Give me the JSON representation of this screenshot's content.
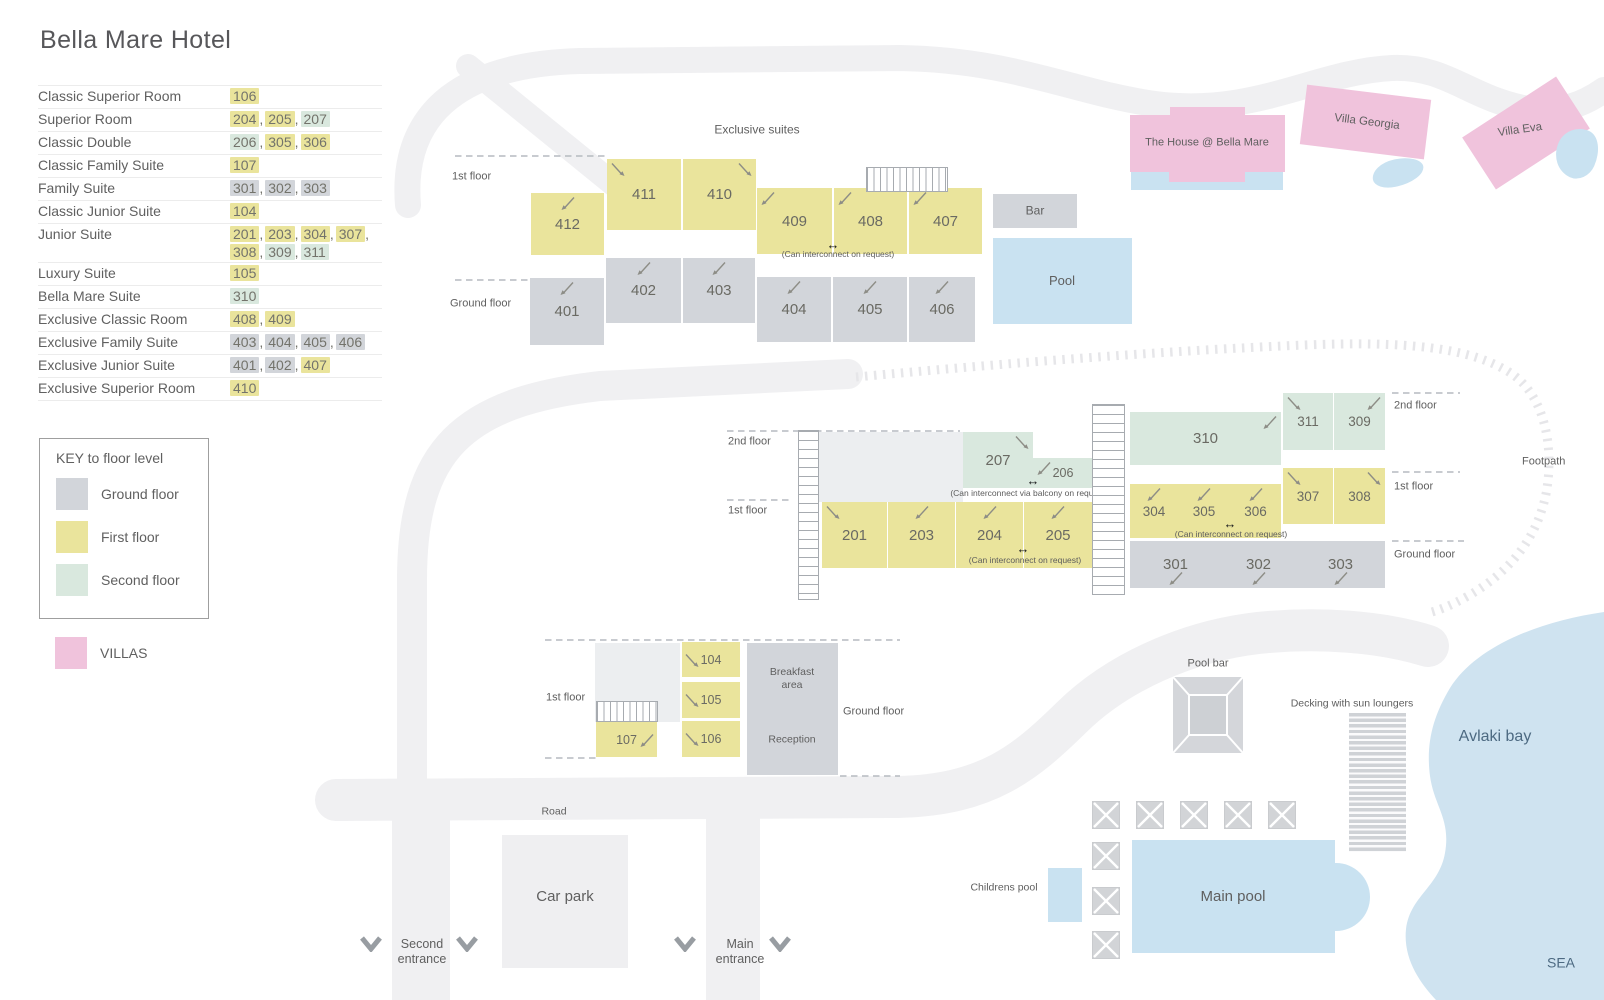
{
  "title": "Bella Mare Hotel",
  "colors": {
    "first": "#eae49c",
    "ground": "#d2d5da",
    "second": "#d9e8de",
    "villas": "#f0c3dc",
    "water": "#c9e2f1",
    "bay": "#cfe3f0",
    "road": "#f0f0f2"
  },
  "legend": {
    "rows": [
      {
        "label": "Classic Superior Room",
        "rooms": [
          {
            "n": "106",
            "f": "first"
          }
        ]
      },
      {
        "label": "Superior Room",
        "rooms": [
          {
            "n": "204",
            "f": "first"
          },
          {
            "n": "205",
            "f": "first"
          },
          {
            "n": "207",
            "f": "second"
          }
        ]
      },
      {
        "label": "Classic Double",
        "rooms": [
          {
            "n": "206",
            "f": "second"
          },
          {
            "n": "305",
            "f": "first"
          },
          {
            "n": "306",
            "f": "first"
          }
        ]
      },
      {
        "label": "Classic Family Suite",
        "rooms": [
          {
            "n": "107",
            "f": "first"
          }
        ]
      },
      {
        "label": "Family Suite",
        "rooms": [
          {
            "n": "301",
            "f": "ground"
          },
          {
            "n": "302",
            "f": "ground"
          },
          {
            "n": "303",
            "f": "ground"
          }
        ]
      },
      {
        "label": "Classic Junior Suite",
        "rooms": [
          {
            "n": "104",
            "f": "first"
          }
        ]
      },
      {
        "label": "Junior Suite",
        "rooms": [
          {
            "n": "201",
            "f": "first"
          },
          {
            "n": "203",
            "f": "first"
          },
          {
            "n": "304",
            "f": "first"
          },
          {
            "n": "307",
            "f": "first"
          },
          {
            "n": "308",
            "f": "first"
          },
          {
            "n": "309",
            "f": "second"
          },
          {
            "n": "311",
            "f": "second"
          }
        ]
      },
      {
        "label": "Luxury Suite",
        "rooms": [
          {
            "n": "105",
            "f": "first"
          }
        ]
      },
      {
        "label": "Bella Mare Suite",
        "rooms": [
          {
            "n": "310",
            "f": "second"
          }
        ]
      },
      {
        "label": "Exclusive Classic Room",
        "rooms": [
          {
            "n": "408",
            "f": "first"
          },
          {
            "n": "409",
            "f": "first"
          }
        ]
      },
      {
        "label": "Exclusive Family Suite",
        "rooms": [
          {
            "n": "403",
            "f": "ground"
          },
          {
            "n": "404",
            "f": "ground"
          },
          {
            "n": "405",
            "f": "ground"
          },
          {
            "n": "406",
            "f": "ground"
          }
        ]
      },
      {
        "label": "Exclusive Junior Suite",
        "rooms": [
          {
            "n": "401",
            "f": "ground"
          },
          {
            "n": "402",
            "f": "ground"
          },
          {
            "n": "407",
            "f": "first"
          }
        ]
      },
      {
        "label": "Exclusive Superior Room",
        "rooms": [
          {
            "n": "410",
            "f": "first"
          }
        ]
      }
    ]
  },
  "key": {
    "title": "KEY to floor level",
    "entries": [
      {
        "label": "Ground floor",
        "floor": "ground"
      },
      {
        "label": "First floor",
        "floor": "first"
      },
      {
        "label": "Second floor",
        "floor": "second"
      }
    ],
    "villas_label": "VILLAS"
  },
  "map": {
    "rooms": [
      {
        "n": "412",
        "f": "first"
      },
      {
        "n": "411",
        "f": "first"
      },
      {
        "n": "410",
        "f": "first"
      },
      {
        "n": "409",
        "f": "first"
      },
      {
        "n": "408",
        "f": "first"
      },
      {
        "n": "407",
        "f": "first"
      },
      {
        "n": "401",
        "f": "ground"
      },
      {
        "n": "402",
        "f": "ground"
      },
      {
        "n": "403",
        "f": "ground"
      },
      {
        "n": "404",
        "f": "ground"
      },
      {
        "n": "405",
        "f": "ground"
      },
      {
        "n": "406",
        "f": "ground"
      },
      {
        "n": "207",
        "f": "second"
      },
      {
        "n": "206",
        "f": "second"
      },
      {
        "n": "201",
        "f": "first"
      },
      {
        "n": "203",
        "f": "first"
      },
      {
        "n": "204",
        "f": "first"
      },
      {
        "n": "205",
        "f": "first"
      },
      {
        "n": "310",
        "f": "second"
      },
      {
        "n": "311",
        "f": "second"
      },
      {
        "n": "309",
        "f": "second"
      },
      {
        "n": "304",
        "f": "first"
      },
      {
        "n": "305",
        "f": "first"
      },
      {
        "n": "306",
        "f": "first"
      },
      {
        "n": "307",
        "f": "first"
      },
      {
        "n": "308",
        "f": "first"
      },
      {
        "n": "301",
        "f": "ground"
      },
      {
        "n": "302",
        "f": "ground"
      },
      {
        "n": "303",
        "f": "ground"
      },
      {
        "n": "104",
        "f": "first"
      },
      {
        "n": "105",
        "f": "first"
      },
      {
        "n": "106",
        "f": "first"
      },
      {
        "n": "107",
        "f": "first"
      }
    ],
    "labels": {
      "exclusive_suites": "Exclusive suites",
      "a_first": "1st floor",
      "a_ground": "Ground floor",
      "b_second": "2nd floor",
      "b_first": "1st floor",
      "c_second": "2nd floor",
      "c_first": "1st floor",
      "c_ground": "Ground floor",
      "d_first": "1st floor",
      "d_ground": "Ground floor",
      "bar": "Bar",
      "pool": "Pool",
      "house": "The House @ Bella Mare",
      "villa_georgia": "Villa Georgia",
      "villa_eva": "Villa Eva",
      "footpath": "Footpath",
      "pool_bar": "Pool bar",
      "decking": "Decking with sun loungers",
      "avlaki_bay": "Avlaki bay",
      "sea": "SEA",
      "main_pool": "Main pool",
      "childrens_pool": "Childrens pool",
      "breakfast_area": "Breakfast\narea",
      "reception": "Reception",
      "road": "Road",
      "car_park": "Car park",
      "second_entrance": "Second\nentrance",
      "main_entrance": "Main\nentrance"
    },
    "notes": [
      {
        "id": "a",
        "text": "(Can interconnect on request)"
      },
      {
        "id": "b",
        "text": "(Can interconnect via balcony on request)"
      },
      {
        "id": "c",
        "text": "(Can interconnect on request)"
      },
      {
        "id": "d",
        "text": "(Can interconnect on request)"
      }
    ]
  }
}
